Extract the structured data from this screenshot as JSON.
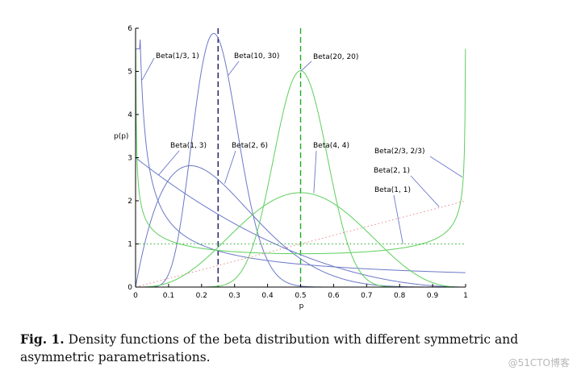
{
  "chart_data": {
    "type": "line",
    "title": "",
    "xlabel": "p",
    "ylabel": "p(p)",
    "xlim": [
      0,
      1
    ],
    "ylim": [
      0,
      6
    ],
    "x_ticks": [
      "0",
      "0.1",
      "0.2",
      "0.3",
      "0.4",
      "0.5",
      "0.6",
      "0.7",
      "0.8",
      "0.9",
      "1"
    ],
    "y_ticks": [
      "0",
      "1",
      "2",
      "3",
      "4",
      "5",
      "6"
    ],
    "grid": false,
    "series": [
      {
        "name": "Beta(1/3, 1)",
        "a": 0.3333,
        "b": 1,
        "color": "#6b78c8",
        "style": "solid"
      },
      {
        "name": "Beta(10, 30)",
        "a": 10,
        "b": 30,
        "color": "#6b78c8",
        "style": "solid"
      },
      {
        "name": "Beta(1, 3)",
        "a": 1,
        "b": 3,
        "color": "#6b78c8",
        "style": "solid"
      },
      {
        "name": "Beta(2, 6)",
        "a": 2,
        "b": 6,
        "color": "#6b78c8",
        "style": "solid"
      },
      {
        "name": "Beta(20, 20)",
        "a": 20,
        "b": 20,
        "color": "#5dcf5d",
        "style": "solid"
      },
      {
        "name": "Beta(4, 4)",
        "a": 4,
        "b": 4,
        "color": "#5dcf5d",
        "style": "solid"
      },
      {
        "name": "Beta(2/3, 2/3)",
        "a": 0.6667,
        "b": 0.6667,
        "color": "#5dcf5d",
        "style": "solid"
      },
      {
        "name": "Beta(2, 1)",
        "a": 2,
        "b": 1,
        "color": "#e58a8a",
        "style": "dotted"
      },
      {
        "name": "Beta(1, 1)",
        "a": 1,
        "b": 1,
        "color": "#22aa22",
        "style": "dotted"
      }
    ],
    "reference_lines": [
      {
        "orientation": "vertical",
        "x": 0.25,
        "color": "#1a1a60",
        "style": "dashed"
      },
      {
        "orientation": "vertical",
        "x": 0.5,
        "color": "#22aa22",
        "style": "dashed"
      }
    ],
    "annotations": [
      {
        "text": "Beta(1/3, 1)",
        "target": [
          0.02,
          4.8
        ]
      },
      {
        "text": "Beta(10, 30)",
        "target": [
          0.28,
          4.9
        ]
      },
      {
        "text": "Beta(20, 20)",
        "target": [
          0.5,
          5.0
        ]
      },
      {
        "text": "Beta(1, 3)",
        "target": [
          0.07,
          2.6
        ]
      },
      {
        "text": "Beta(2, 6)",
        "target": [
          0.27,
          2.4
        ]
      },
      {
        "text": "Beta(4, 4)",
        "target": [
          0.54,
          2.18
        ]
      },
      {
        "text": "Beta(2/3, 2/3)",
        "target": [
          0.99,
          2.55
        ]
      },
      {
        "text": "Beta(2, 1)",
        "target": [
          0.92,
          1.86
        ]
      },
      {
        "text": "Beta(1, 1)",
        "target": [
          0.81,
          1.0
        ]
      }
    ]
  },
  "caption": {
    "label": "Fig. 1.",
    "text": " Density functions of the beta distribution with different symmetric and asymmetric parametrisations."
  },
  "watermark": "@51CTO博客"
}
